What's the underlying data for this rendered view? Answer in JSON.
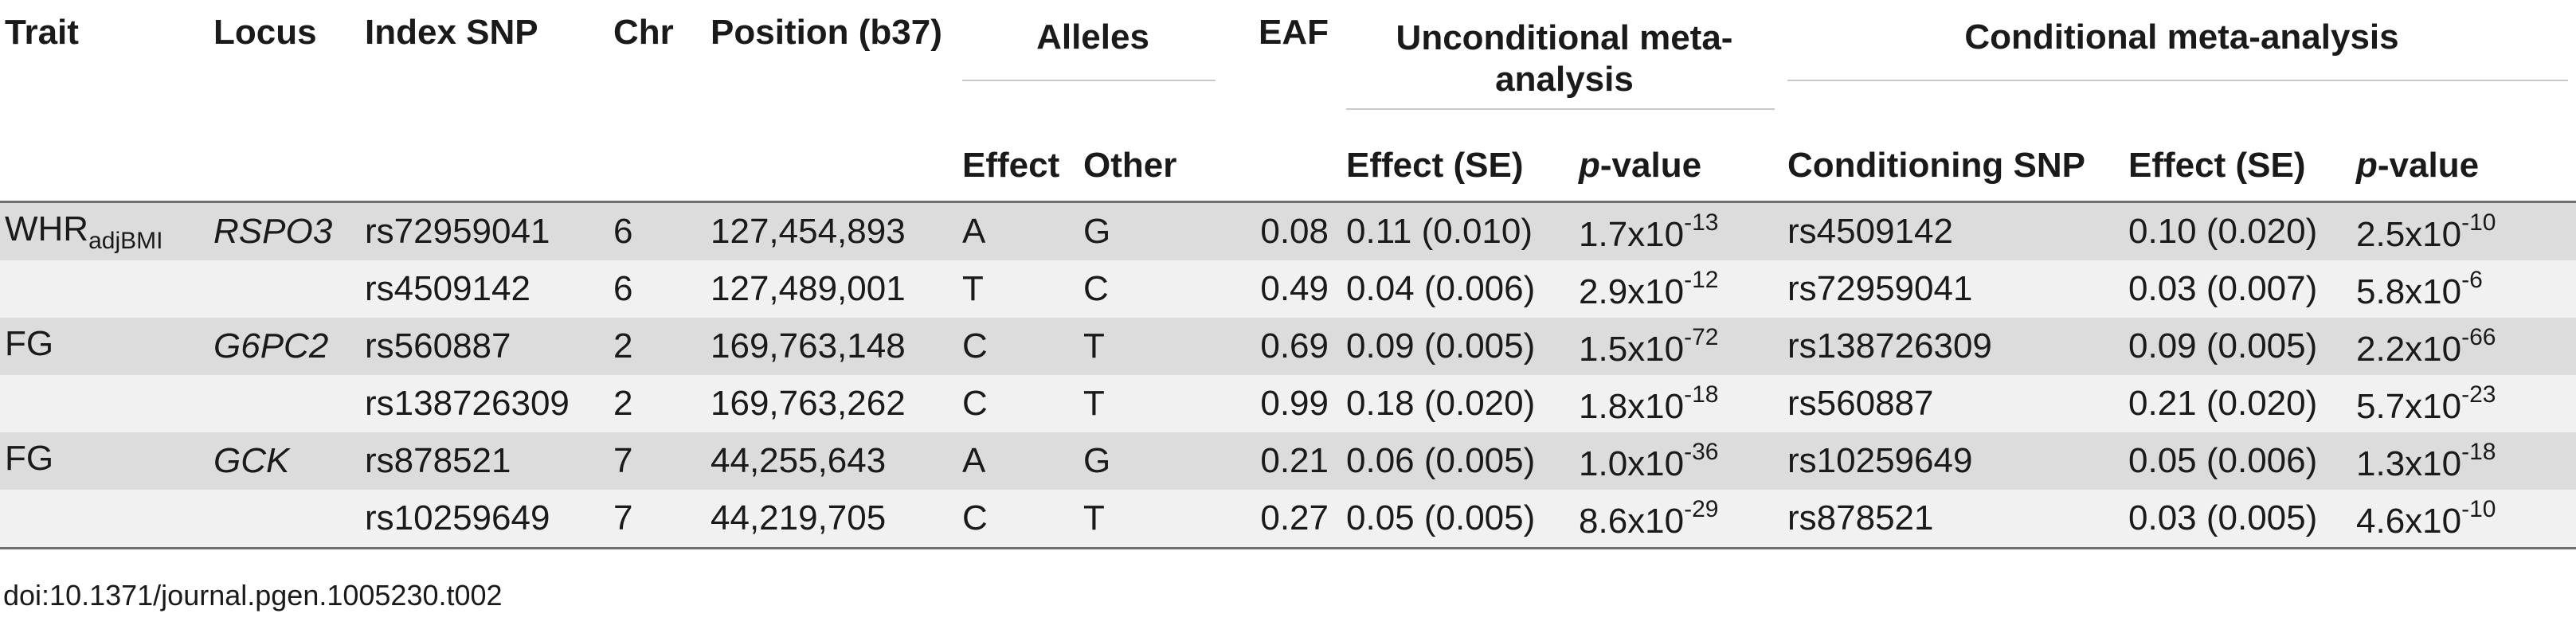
{
  "header": {
    "trait": "Trait",
    "locus": "Locus",
    "index_snp": "Index SNP",
    "chr": "Chr",
    "position": "Position (b37)",
    "alleles": "Alleles",
    "effect_allele": "Effect",
    "other_allele": "Other",
    "eaf": "EAF",
    "unconditional_line1": "Unconditional meta-",
    "unconditional_line2": "analysis",
    "conditional": "Conditional meta-analysis",
    "u_effect": "Effect (SE)",
    "u_p": "p",
    "u_p_suffix": "-value",
    "conditioning_snp": "Conditioning SNP",
    "c_effect": "Effect (SE)",
    "c_p": "p",
    "c_p_suffix": "-value"
  },
  "rows": [
    {
      "trait": "WHR",
      "trait_sub": "adjBMI",
      "locus": "RSPO3",
      "snp": "rs72959041",
      "chr": "6",
      "pos": "127,454,893",
      "effect": "A",
      "other": "G",
      "eaf": "0.08",
      "u_effect": "0.11 (0.010)",
      "u_p_base": "1.7x10",
      "u_p_exp": "-13",
      "cond_snp": "rs4509142",
      "c_effect": "0.10 (0.020)",
      "c_p_base": "2.5x10",
      "c_p_exp": "-10"
    },
    {
      "trait": "",
      "trait_sub": "",
      "locus": "",
      "snp": "rs4509142",
      "chr": "6",
      "pos": "127,489,001",
      "effect": "T",
      "other": "C",
      "eaf": "0.49",
      "u_effect": "0.04 (0.006)",
      "u_p_base": "2.9x10",
      "u_p_exp": "-12",
      "cond_snp": "rs72959041",
      "c_effect": "0.03 (0.007)",
      "c_p_base": "5.8x10",
      "c_p_exp": "-6"
    },
    {
      "trait": "FG",
      "trait_sub": "",
      "locus": "G6PC2",
      "snp": "rs560887",
      "chr": "2",
      "pos": "169,763,148",
      "effect": "C",
      "other": "T",
      "eaf": "0.69",
      "u_effect": "0.09 (0.005)",
      "u_p_base": "1.5x10",
      "u_p_exp": "-72",
      "cond_snp": "rs138726309",
      "c_effect": "0.09 (0.005)",
      "c_p_base": "2.2x10",
      "c_p_exp": "-66"
    },
    {
      "trait": "",
      "trait_sub": "",
      "locus": "",
      "snp": "rs138726309",
      "chr": "2",
      "pos": "169,763,262",
      "effect": "C",
      "other": "T",
      "eaf": "0.99",
      "u_effect": "0.18 (0.020)",
      "u_p_base": "1.8x10",
      "u_p_exp": "-18",
      "cond_snp": "rs560887",
      "c_effect": "0.21 (0.020)",
      "c_p_base": "5.7x10",
      "c_p_exp": "-23"
    },
    {
      "trait": "FG",
      "trait_sub": "",
      "locus": "GCK",
      "snp": "rs878521",
      "chr": "7",
      "pos": "44,255,643",
      "effect": "A",
      "other": "G",
      "eaf": "0.21",
      "u_effect": "0.06 (0.005)",
      "u_p_base": "1.0x10",
      "u_p_exp": "-36",
      "cond_snp": "rs10259649",
      "c_effect": "0.05 (0.006)",
      "c_p_base": "1.3x10",
      "c_p_exp": "-18"
    },
    {
      "trait": "",
      "trait_sub": "",
      "locus": "",
      "snp": "rs10259649",
      "chr": "7",
      "pos": "44,219,705",
      "effect": "C",
      "other": "T",
      "eaf": "0.27",
      "u_effect": "0.05 (0.005)",
      "u_p_base": "8.6x10",
      "u_p_exp": "-29",
      "cond_snp": "rs878521",
      "c_effect": "0.03 (0.005)",
      "c_p_base": "4.6x10",
      "c_p_exp": "-10"
    }
  ],
  "footnote": "doi:10.1371/journal.pgen.1005230.t002"
}
